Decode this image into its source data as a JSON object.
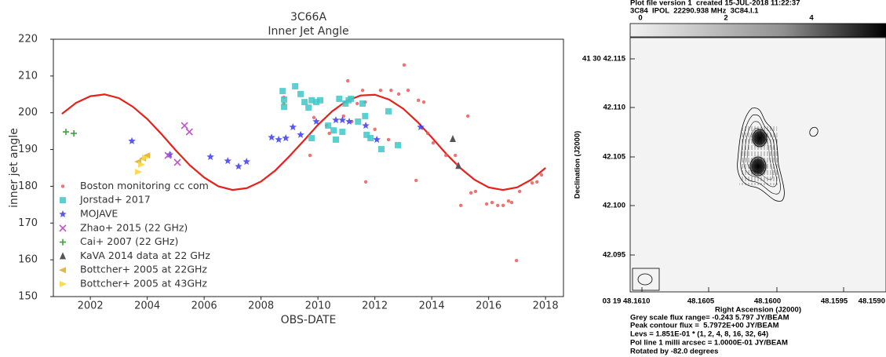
{
  "chart_data": {
    "type": "scatter",
    "title": "3C66A",
    "subtitle": "Inner Jet Angle",
    "x_label": "OBS-DATE",
    "y_label": "inner jet angle",
    "xlim": [
      2000.7,
      2018.63
    ],
    "xticks": [
      2002,
      2004,
      2006,
      2008,
      2010,
      2012,
      2014,
      2016,
      2018
    ],
    "ylim": [
      150,
      220
    ],
    "yticks": [
      150,
      160,
      170,
      180,
      190,
      200,
      210,
      220
    ],
    "legend": "lower left",
    "series": [
      {
        "line": true,
        "color": "#e8201a",
        "x": [
          2001,
          2001.5,
          2002,
          2002.5,
          2003,
          2003.5,
          2004,
          2004.5,
          2005,
          2005.5,
          2006,
          2006.5,
          2007,
          2007.5,
          2008,
          2008.5,
          2009,
          2009.5,
          2010,
          2010.5,
          2011,
          2011.5,
          2012,
          2012.5,
          2013,
          2013.5,
          2014,
          2014.5,
          2015,
          2015.5,
          2016,
          2016.5,
          2017,
          2017.5,
          2018
        ],
        "values": [
          199.7,
          202.7,
          204.5,
          205.0,
          204.0,
          201.6,
          198.3,
          194.2,
          189.8,
          185.7,
          182.4,
          180.0,
          179.0,
          179.5,
          181.3,
          184.3,
          188.2,
          192.4,
          196.7,
          200.4,
          203.2,
          204.7,
          204.9,
          203.6,
          201.1,
          197.5,
          193.3,
          188.9,
          185.0,
          181.8,
          179.7,
          179.0,
          179.7,
          181.8,
          185.0
        ]
      },
      {
        "name": "Boston monitoring cc com",
        "marker": "circle",
        "color": "#f05858",
        "x": [
          2008.8,
          2008.8,
          2009.72,
          2009.86,
          2010.3,
          2010.4,
          2010.9,
          2011.05,
          2011.19,
          2011.38,
          2011.57,
          2011.66,
          2011.68,
          2012.0,
          2012.2,
          2012.48,
          2012.57,
          2012.84,
          2013.03,
          2013.17,
          2013.45,
          2013.53,
          2013.72,
          2013.86,
          2014.05,
          2014.5,
          2014.83,
          2014.91,
          2015.02,
          2015.27,
          2015.38,
          2015.54,
          2015.93,
          2016.12,
          2016.32,
          2016.51,
          2016.7,
          2016.81,
          2016.98,
          2017.09,
          2017.53,
          2017.7,
          2017.86
        ],
        "values": [
          204.2,
          202.5,
          188.4,
          198.7,
          196.5,
          194.4,
          199.1,
          208.7,
          197.6,
          202.5,
          206.1,
          202.9,
          181.2,
          195.5,
          206.1,
          192.7,
          206.1,
          205.1,
          213.0,
          206.1,
          181.6,
          203.4,
          202.9,
          194.4,
          191.8,
          188.4,
          188.4,
          185.9,
          174.8,
          199.1,
          178.2,
          178.6,
          175.2,
          175.6,
          174.8,
          174.8,
          176.0,
          175.6,
          159.8,
          178.6,
          180.9,
          181.2,
          183.1
        ]
      },
      {
        "name": "Jorstad+ 2017",
        "marker": "square",
        "color": "#40c8c8",
        "x": [
          2008.76,
          2008.81,
          2008.81,
          2009.2,
          2009.39,
          2009.53,
          2009.67,
          2009.78,
          2009.78,
          2009.94,
          2010.08,
          2010.36,
          2010.55,
          2010.63,
          2010.75,
          2010.86,
          2010.97,
          2011.08,
          2011.16,
          2011.41,
          2011.57,
          2011.66,
          2011.71,
          2011.85,
          2012.23,
          2012.48,
          2012.81
        ],
        "values": [
          205.9,
          203.6,
          201.6,
          207.2,
          205.1,
          202.9,
          201.4,
          203.4,
          193.1,
          202.9,
          203.4,
          196.5,
          195.2,
          192.7,
          203.8,
          194.8,
          202.5,
          203.4,
          203.8,
          197.6,
          202.5,
          199.1,
          194.0,
          193.1,
          190.1,
          200.4,
          191.2
        ]
      },
      {
        "name": "MOJAVE",
        "marker": "star",
        "color": "#3a3af0",
        "x": [
          2003.46,
          2004.79,
          2006.22,
          2006.83,
          2007.21,
          2007.49,
          2008.37,
          2008.62,
          2008.87,
          2009.12,
          2009.39,
          2009.94,
          2010.63,
          2010.86,
          2011.1,
          2011.68,
          2012.07,
          2013.61
        ],
        "values": [
          192.3,
          188.6,
          188.0,
          186.9,
          185.4,
          186.7,
          193.3,
          192.7,
          193.1,
          196.1,
          194.0,
          197.6,
          198.0,
          198.0,
          197.6,
          196.5,
          192.7,
          196.1
        ]
      },
      {
        "name": "Zhao+ 2015 (22 GHz)",
        "marker": "x",
        "color": "#c050c8",
        "x": [
          2004.73,
          2005.06,
          2005.31,
          2005.48
        ],
        "values": [
          188.4,
          186.5,
          196.5,
          194.8
        ]
      },
      {
        "name": "Cai+ 2007 (22 GHz)",
        "marker": "plus",
        "color": "#40a040",
        "x": [
          2001.14,
          2001.42
        ],
        "values": [
          194.8,
          194.4
        ]
      },
      {
        "name": "KaVA 2014 data at 22 GHz",
        "marker": "triangle-up",
        "color": "#555555",
        "x": [
          2014.74,
          2014.94
        ],
        "values": [
          192.9,
          185.6
        ]
      },
      {
        "name": "Bottcher+ 2005 at 22GHz",
        "marker": "triangle-left",
        "color": "#e0b030",
        "x": [
          2003.68,
          2003.85,
          2003.99
        ],
        "values": [
          186.7,
          187.6,
          188.4
        ]
      },
      {
        "name": "Bottcher+ 2005 at 43GHz",
        "marker": "triangle-right",
        "color": "#f8d840",
        "x": [
          2003.68,
          2003.79,
          2003.93
        ],
        "values": [
          183.9,
          185.9,
          187.8
        ]
      }
    ]
  },
  "map": {
    "header": [
      "Plot file version 1  created 15-JUL-2018 11:22:37",
      "3C84  IPOL  22290.938 MHz  3C84.I.1"
    ],
    "colorbar_ticks": [
      0,
      2,
      4
    ],
    "y_ticks": [
      "41 30 42.115",
      "42.110",
      "42.105",
      "42.100",
      "42.095"
    ],
    "x_ticks": [
      "03 19 48.1610",
      "48.1605",
      "48.1600",
      "48.1595",
      "48.1590"
    ],
    "y_label": "Declination (J2000)",
    "x_label": "Right Ascension (J2000)",
    "notes": [
      "Grey scale flux range= -0.243 5.797 JY/BEAM",
      "Peak contour flux =  5.7972E+00 JY/BEAM",
      "Levs = 1.851E-01 * (1, 2, 4, 8, 16, 32, 64)",
      "Pol line 1 milli arcsec = 1.0000E-01 JY/BEAM",
      "Rotated by -82.0 degrees"
    ]
  }
}
